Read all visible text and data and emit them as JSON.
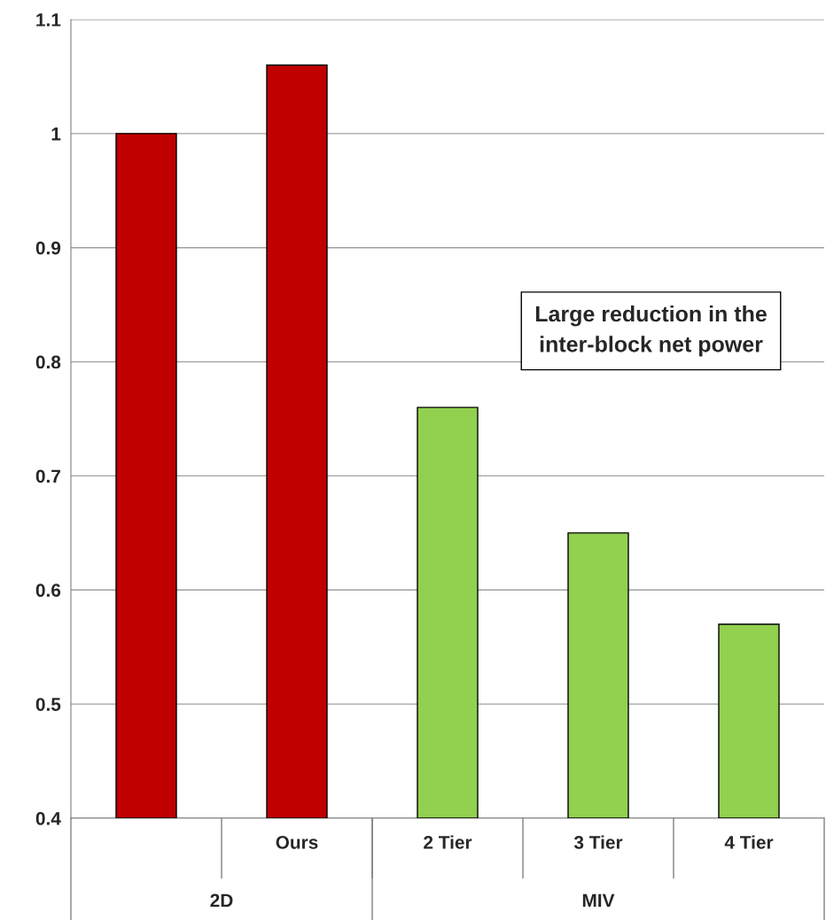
{
  "chart_data": {
    "type": "bar",
    "categories": [
      null,
      "Ours",
      "2 Tier",
      "3 Tier",
      "4 Tier"
    ],
    "values": [
      1.0,
      1.06,
      0.76,
      0.65,
      0.57
    ],
    "colors": [
      "#c00000",
      "#c00000",
      "#92d050",
      "#92d050",
      "#92d050"
    ],
    "ylim": [
      0.4,
      1.1
    ],
    "yticks": [
      0.4,
      0.5,
      0.6,
      0.7,
      0.8,
      0.9,
      1,
      1.1
    ],
    "grid": "y",
    "legend": false,
    "annotations": [
      "2D",
      "MIV",
      "Large reduction in the inter-block net power"
    ]
  }
}
